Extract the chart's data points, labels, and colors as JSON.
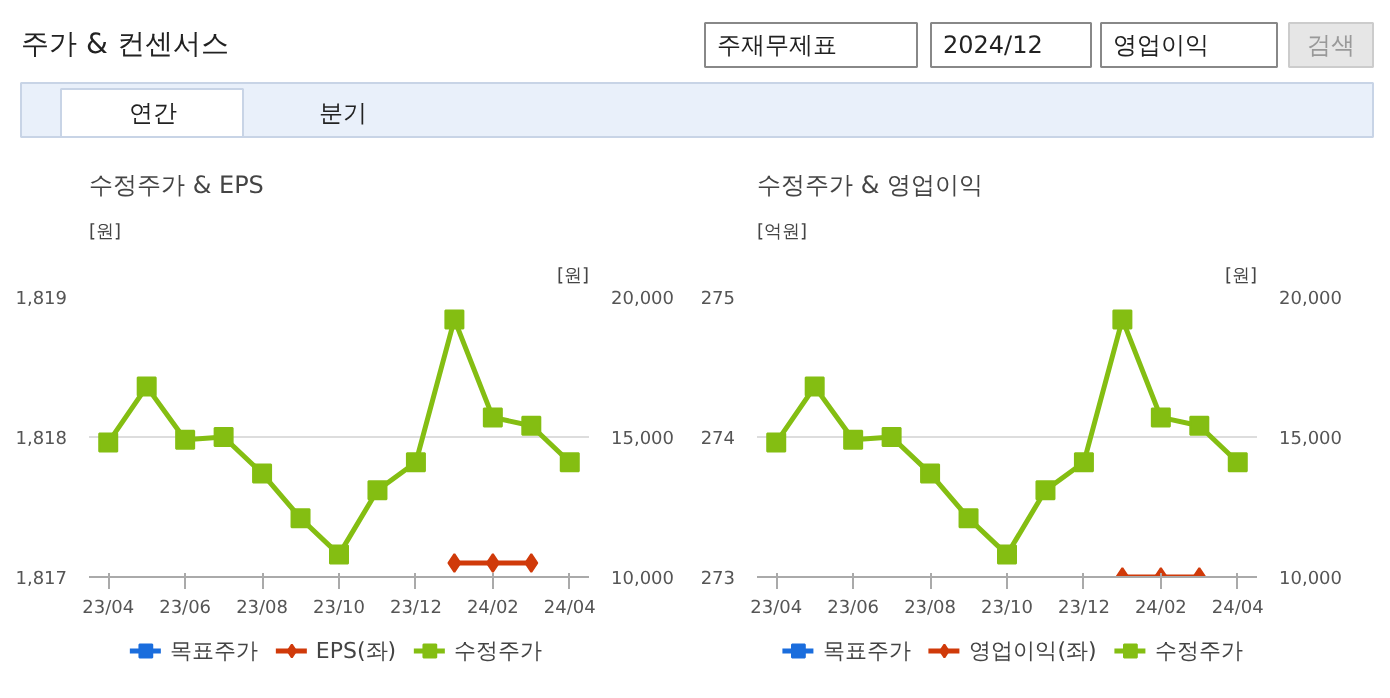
{
  "chart_data": [
    {
      "type": "other",
      "title": "주가 & 컨센서스",
      "annotations": [
        "주재무제표",
        "2024/12",
        "영업이익",
        "검색",
        "연간",
        "분기"
      ]
    },
    {
      "type": "line",
      "title": "수정주가 & EPS",
      "ylabel": "[원]",
      "y2label": "[원]",
      "categories": [
        "23/04",
        null,
        "23/06",
        null,
        "23/08",
        null,
        "23/10",
        null,
        "23/12",
        null,
        "24/02",
        null,
        "24/04"
      ],
      "ylim": [
        1817,
        1819
      ],
      "yticks": [
        {
          "value": 1817,
          "label": "1,817"
        },
        {
          "value": 1818,
          "label": "1,818"
        },
        {
          "value": 1819,
          "label": "1,819"
        }
      ],
      "y2lim": [
        10000,
        20000
      ],
      "y2ticks": [
        {
          "value": 10000,
          "label": "10,000"
        },
        {
          "value": 15000,
          "label": "15,000"
        },
        {
          "value": 20000,
          "label": "20,000"
        }
      ],
      "grid": "y",
      "legend": "bottom",
      "line_style": "solid",
      "series": [
        {
          "name": "목표주가",
          "color": "#1a6ddd",
          "marker": "square",
          "values": [
            null,
            null,
            null,
            null,
            null,
            null,
            null,
            null,
            null,
            null,
            null,
            null,
            null
          ]
        },
        {
          "name": "EPS(좌)",
          "color": "#d03a0a",
          "marker": "diamond",
          "values": [
            null,
            null,
            null,
            null,
            null,
            null,
            null,
            null,
            null,
            1817.1,
            1817.1,
            1817.1,
            null
          ]
        },
        {
          "name": "수정주가",
          "color": "#84be12",
          "marker": "square",
          "axis": "y2",
          "values": [
            14800,
            16800,
            14900,
            15000,
            13700,
            12100,
            10800,
            13100,
            14100,
            19200,
            15700,
            15400,
            14100
          ]
        }
      ]
    },
    {
      "type": "line",
      "title": "수정주가 & 영업이익",
      "ylabel": "[억원]",
      "y2label": "[원]",
      "categories": [
        "23/04",
        null,
        "23/06",
        null,
        "23/08",
        null,
        "23/10",
        null,
        "23/12",
        null,
        "24/02",
        null,
        "24/04"
      ],
      "ylim": [
        273,
        275
      ],
      "yticks": [
        273,
        274,
        275
      ],
      "y2lim": [
        10000,
        20000
      ],
      "y2ticks": [
        {
          "value": 10000,
          "label": "10,000"
        },
        {
          "value": 15000,
          "label": "15,000"
        },
        {
          "value": 20000,
          "label": "20,000"
        }
      ],
      "grid": "y",
      "legend": "bottom",
      "line_style": "solid",
      "series": [
        {
          "name": "목표주가",
          "color": "#1a6ddd",
          "marker": "square",
          "values": [
            null,
            null,
            null,
            null,
            null,
            null,
            null,
            null,
            null,
            null,
            null,
            null,
            null
          ]
        },
        {
          "name": "영업이익(좌)",
          "color": "#d03a0a",
          "marker": "diamond",
          "values": [
            null,
            null,
            null,
            null,
            null,
            null,
            null,
            null,
            null,
            273.0,
            273.0,
            273.0,
            null
          ]
        },
        {
          "name": "수정주가",
          "color": "#84be12",
          "marker": "square",
          "axis": "y2",
          "values": [
            14800,
            16800,
            14900,
            15000,
            13700,
            12100,
            10800,
            13100,
            14100,
            19200,
            15700,
            15400,
            14100
          ]
        }
      ]
    }
  ]
}
